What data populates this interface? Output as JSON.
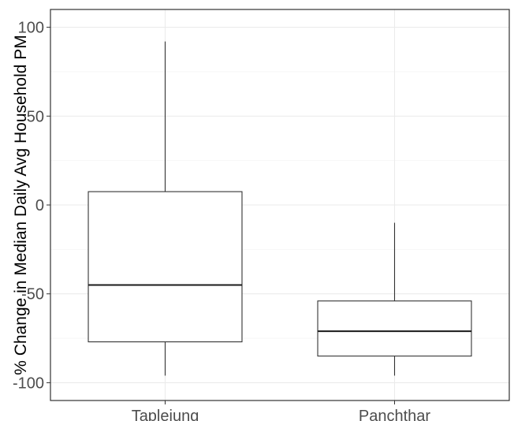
{
  "chart_data": {
    "type": "boxplot",
    "title": "",
    "xlabel": "",
    "ylabel": "% Change in Median Daily Avg Household PM",
    "ylim": [
      -110,
      110
    ],
    "yticks": [
      100,
      50,
      0,
      -50,
      -100
    ],
    "ytick_labels": [
      "100",
      "50",
      "0",
      "-50",
      "-100"
    ],
    "grid": true,
    "categories": [
      "Taplejung",
      "Panchthar"
    ],
    "boxes": [
      {
        "category": "Taplejung",
        "whisker_low": -96,
        "q1": -77,
        "median": -45,
        "q3": 7.5,
        "whisker_high": 92
      },
      {
        "category": "Panchthar",
        "whisker_low": -96,
        "q1": -85,
        "median": -71,
        "q3": -54,
        "whisker_high": -10
      }
    ]
  }
}
